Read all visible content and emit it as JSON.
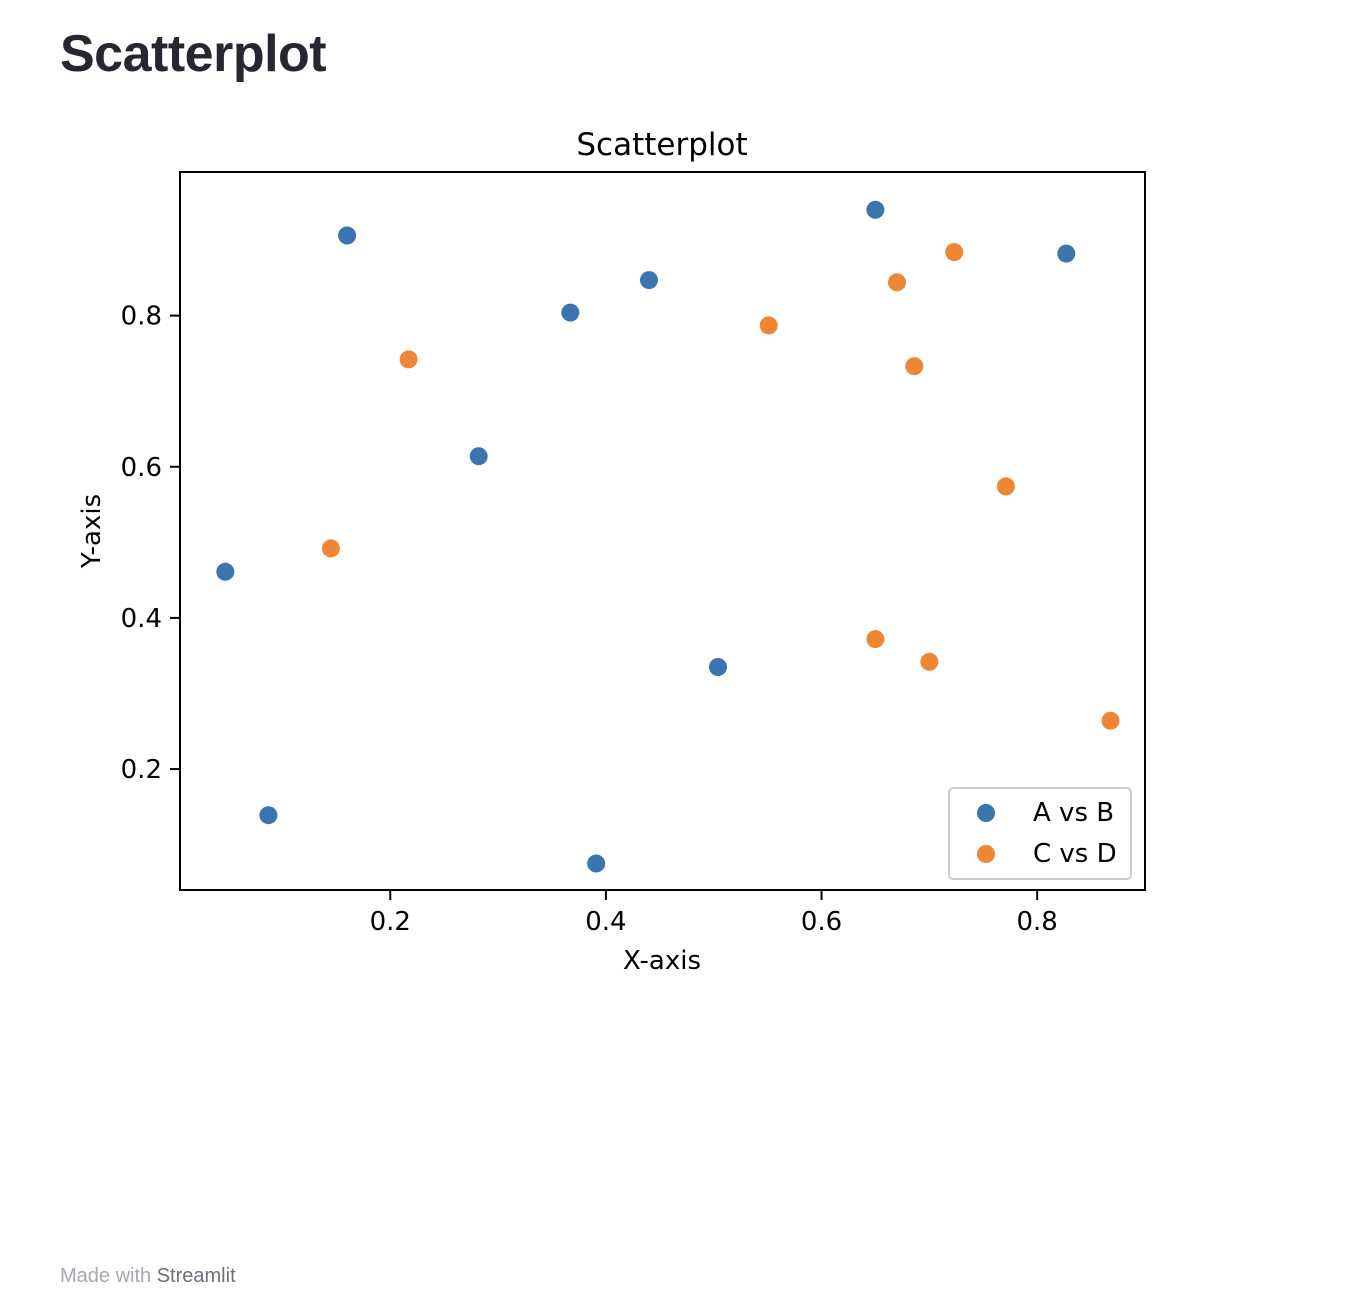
{
  "page": {
    "title": "Scatterplot"
  },
  "footer": {
    "prefix": "Made with",
    "brand": "Streamlit"
  },
  "chart_data": {
    "type": "scatter",
    "title": "Scatterplot",
    "xlabel": "X-axis",
    "ylabel": "Y-axis",
    "xlim": [
      0.005,
      0.9
    ],
    "ylim": [
      0.04,
      0.99
    ],
    "xticks": [
      {
        "value": 0.2,
        "label": "0.2"
      },
      {
        "value": 0.4,
        "label": "0.4"
      },
      {
        "value": 0.6,
        "label": "0.6"
      },
      {
        "value": 0.8,
        "label": "0.8"
      }
    ],
    "yticks": [
      {
        "value": 0.2,
        "label": "0.2"
      },
      {
        "value": 0.4,
        "label": "0.4"
      },
      {
        "value": 0.6,
        "label": "0.6"
      },
      {
        "value": 0.8,
        "label": "0.8"
      }
    ],
    "grid": false,
    "legend_position": "lower-right",
    "series": [
      {
        "name": "A vs B",
        "color": "#3a75b0",
        "points": [
          {
            "x": 0.047,
            "y": 0.461
          },
          {
            "x": 0.087,
            "y": 0.139
          },
          {
            "x": 0.16,
            "y": 0.906
          },
          {
            "x": 0.282,
            "y": 0.614
          },
          {
            "x": 0.367,
            "y": 0.804
          },
          {
            "x": 0.391,
            "y": 0.075
          },
          {
            "x": 0.44,
            "y": 0.847
          },
          {
            "x": 0.504,
            "y": 0.335
          },
          {
            "x": 0.65,
            "y": 0.94
          },
          {
            "x": 0.827,
            "y": 0.882
          }
        ]
      },
      {
        "name": "C vs D",
        "color": "#ef8636",
        "points": [
          {
            "x": 0.145,
            "y": 0.492
          },
          {
            "x": 0.217,
            "y": 0.742
          },
          {
            "x": 0.551,
            "y": 0.787
          },
          {
            "x": 0.65,
            "y": 0.372
          },
          {
            "x": 0.67,
            "y": 0.844
          },
          {
            "x": 0.686,
            "y": 0.733
          },
          {
            "x": 0.7,
            "y": 0.342
          },
          {
            "x": 0.723,
            "y": 0.884
          },
          {
            "x": 0.771,
            "y": 0.574
          },
          {
            "x": 0.868,
            "y": 0.264
          }
        ]
      }
    ]
  }
}
